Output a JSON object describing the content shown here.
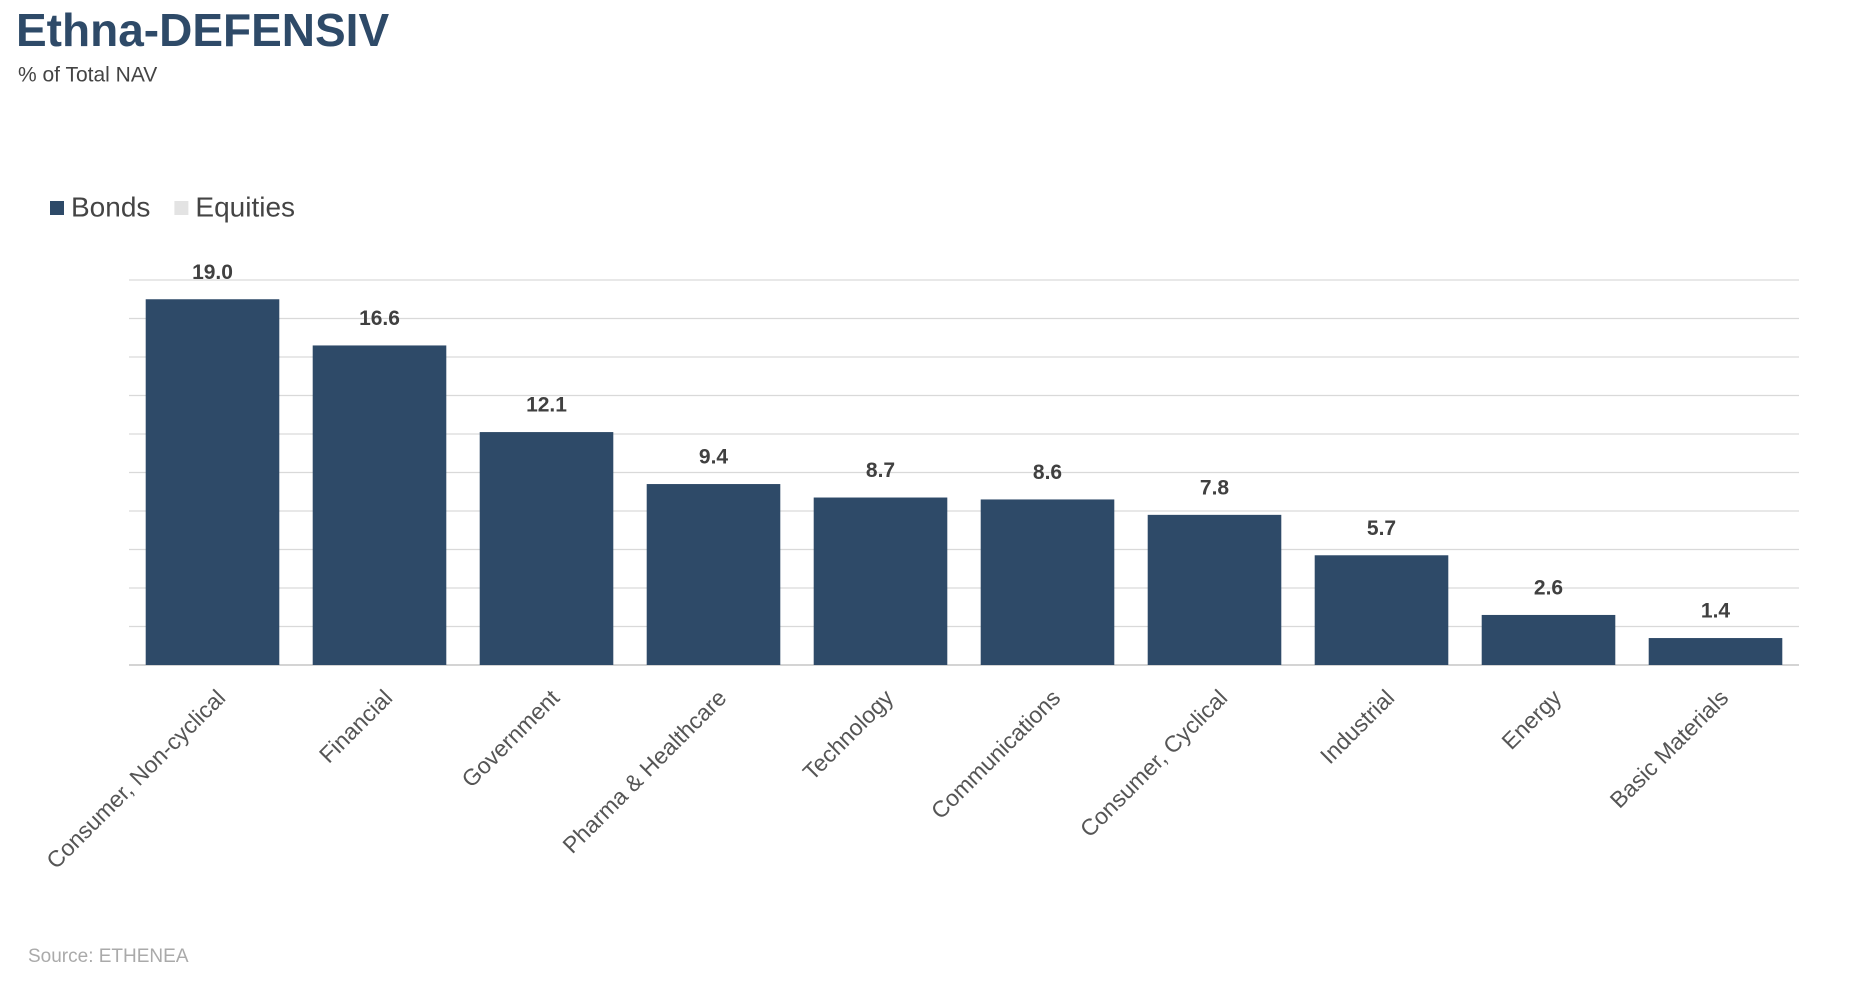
{
  "chart_data": {
    "type": "bar",
    "title": "Ethna-DEFENSIV",
    "subtitle": "% of Total NAV",
    "categories": [
      "Consumer, Non-cyclical",
      "Financial",
      "Government",
      "Pharma & Healthcare",
      "Technology",
      "Communications",
      "Consumer, Cyclical",
      "Industrial",
      "Energy",
      "Basic Materials"
    ],
    "series": [
      {
        "name": "Bonds",
        "color": "#2e4a68",
        "values": [
          19.0,
          16.6,
          12.1,
          9.4,
          8.7,
          8.6,
          7.8,
          5.7,
          2.6,
          1.4
        ],
        "value_labels": [
          "19.0",
          "16.6",
          "12.1",
          "9.4",
          "8.7",
          "8.6",
          "7.8",
          "5.7",
          "2.6",
          "1.4"
        ]
      },
      {
        "name": "Equities",
        "color": "#e3e3e3",
        "values": [
          null,
          null,
          null,
          null,
          null,
          null,
          null,
          null,
          null,
          null
        ]
      }
    ],
    "ylim": [
      0,
      20
    ],
    "yticks": [
      0,
      2,
      4,
      6,
      8,
      10,
      12,
      14,
      16,
      18,
      20
    ],
    "grid": true,
    "source": "Source: ETHENEA"
  }
}
